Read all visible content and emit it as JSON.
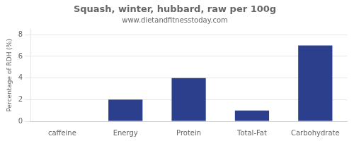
{
  "chart_data": {
    "type": "bar",
    "title": "Squash, winter, hubbard, raw per 100g",
    "subtitle": "www.dietandfitnesstoday.com",
    "categories": [
      "caffeine",
      "Energy",
      "Protein",
      "Total-Fat",
      "Carbohydrate"
    ],
    "values": [
      0,
      2,
      4,
      1,
      7
    ],
    "color": "#2b3f8c",
    "ylim": [
      0,
      8.5
    ],
    "yticks": [
      0,
      2,
      4,
      6,
      8
    ],
    "ylabel": "Percentage of RDH (%)",
    "grid": true
  }
}
